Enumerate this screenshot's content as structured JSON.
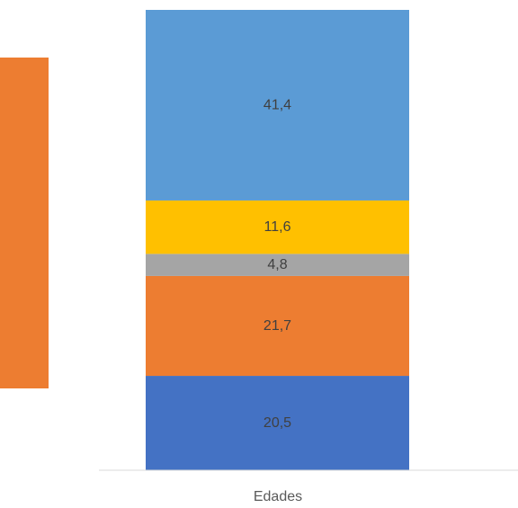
{
  "chart_data": {
    "type": "bar",
    "stacked": true,
    "categories": [
      "Edades"
    ],
    "series": [
      {
        "values": [
          20.5
        ],
        "labels": [
          "20,5"
        ],
        "color": "#4472C4"
      },
      {
        "values": [
          21.7
        ],
        "labels": [
          "21,7"
        ],
        "color": "#ED7D31"
      },
      {
        "values": [
          4.8
        ],
        "labels": [
          "4,8"
        ],
        "color": "#A5A5A5"
      },
      {
        "values": [
          11.6
        ],
        "labels": [
          "11,6"
        ],
        "color": "#FFC000"
      },
      {
        "values": [
          41.4
        ],
        "labels": [
          "41,4"
        ],
        "color": "#5B9BD5"
      }
    ],
    "ylim": [
      0,
      100
    ],
    "grid": false,
    "partial_bar_left": {
      "color": "#ED7D31"
    },
    "axis_color": "#D9D9D9"
  }
}
